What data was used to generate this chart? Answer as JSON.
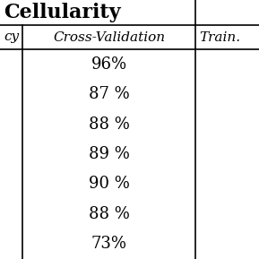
{
  "title": "Cellularity",
  "col1_header": "cy",
  "col2_header": "Cross-Validation",
  "col3_header": "Train.",
  "cross_validation_values": [
    "96%",
    "87 %",
    "88 %",
    "89 %",
    "90 %",
    "88 %",
    "73%"
  ],
  "background_color": "#ffffff",
  "text_color": "#000000",
  "line_color": "#000000",
  "title_fontsize": 16,
  "header_fontsize": 11,
  "cell_fontsize": 13,
  "fig_width": 2.89,
  "fig_height": 2.89,
  "dpi": 100
}
